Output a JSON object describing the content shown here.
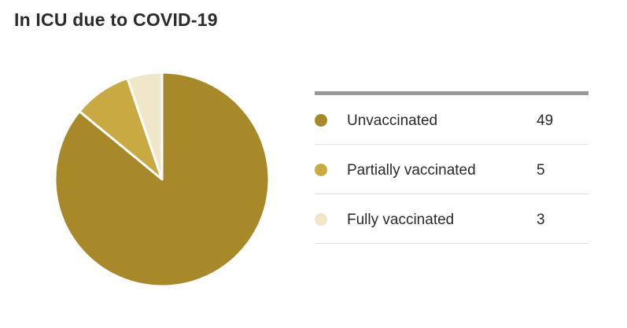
{
  "title": "In ICU due to COVID-19",
  "chart_data": {
    "type": "pie",
    "title": "In ICU due to COVID-19",
    "categories": [
      "Unvaccinated",
      "Partially vaccinated",
      "Fully vaccinated"
    ],
    "values": [
      49,
      5,
      3
    ],
    "colors": [
      "#a8892a",
      "#c9aa42",
      "#f0e7cb"
    ],
    "legend_position": "right"
  },
  "legend": {
    "items": [
      {
        "label": "Unvaccinated",
        "value": "49",
        "color": "#a8892a"
      },
      {
        "label": "Partially vaccinated",
        "value": "5",
        "color": "#c9aa42"
      },
      {
        "label": "Fully vaccinated",
        "value": "3",
        "color": "#f0e7cb"
      }
    ]
  }
}
